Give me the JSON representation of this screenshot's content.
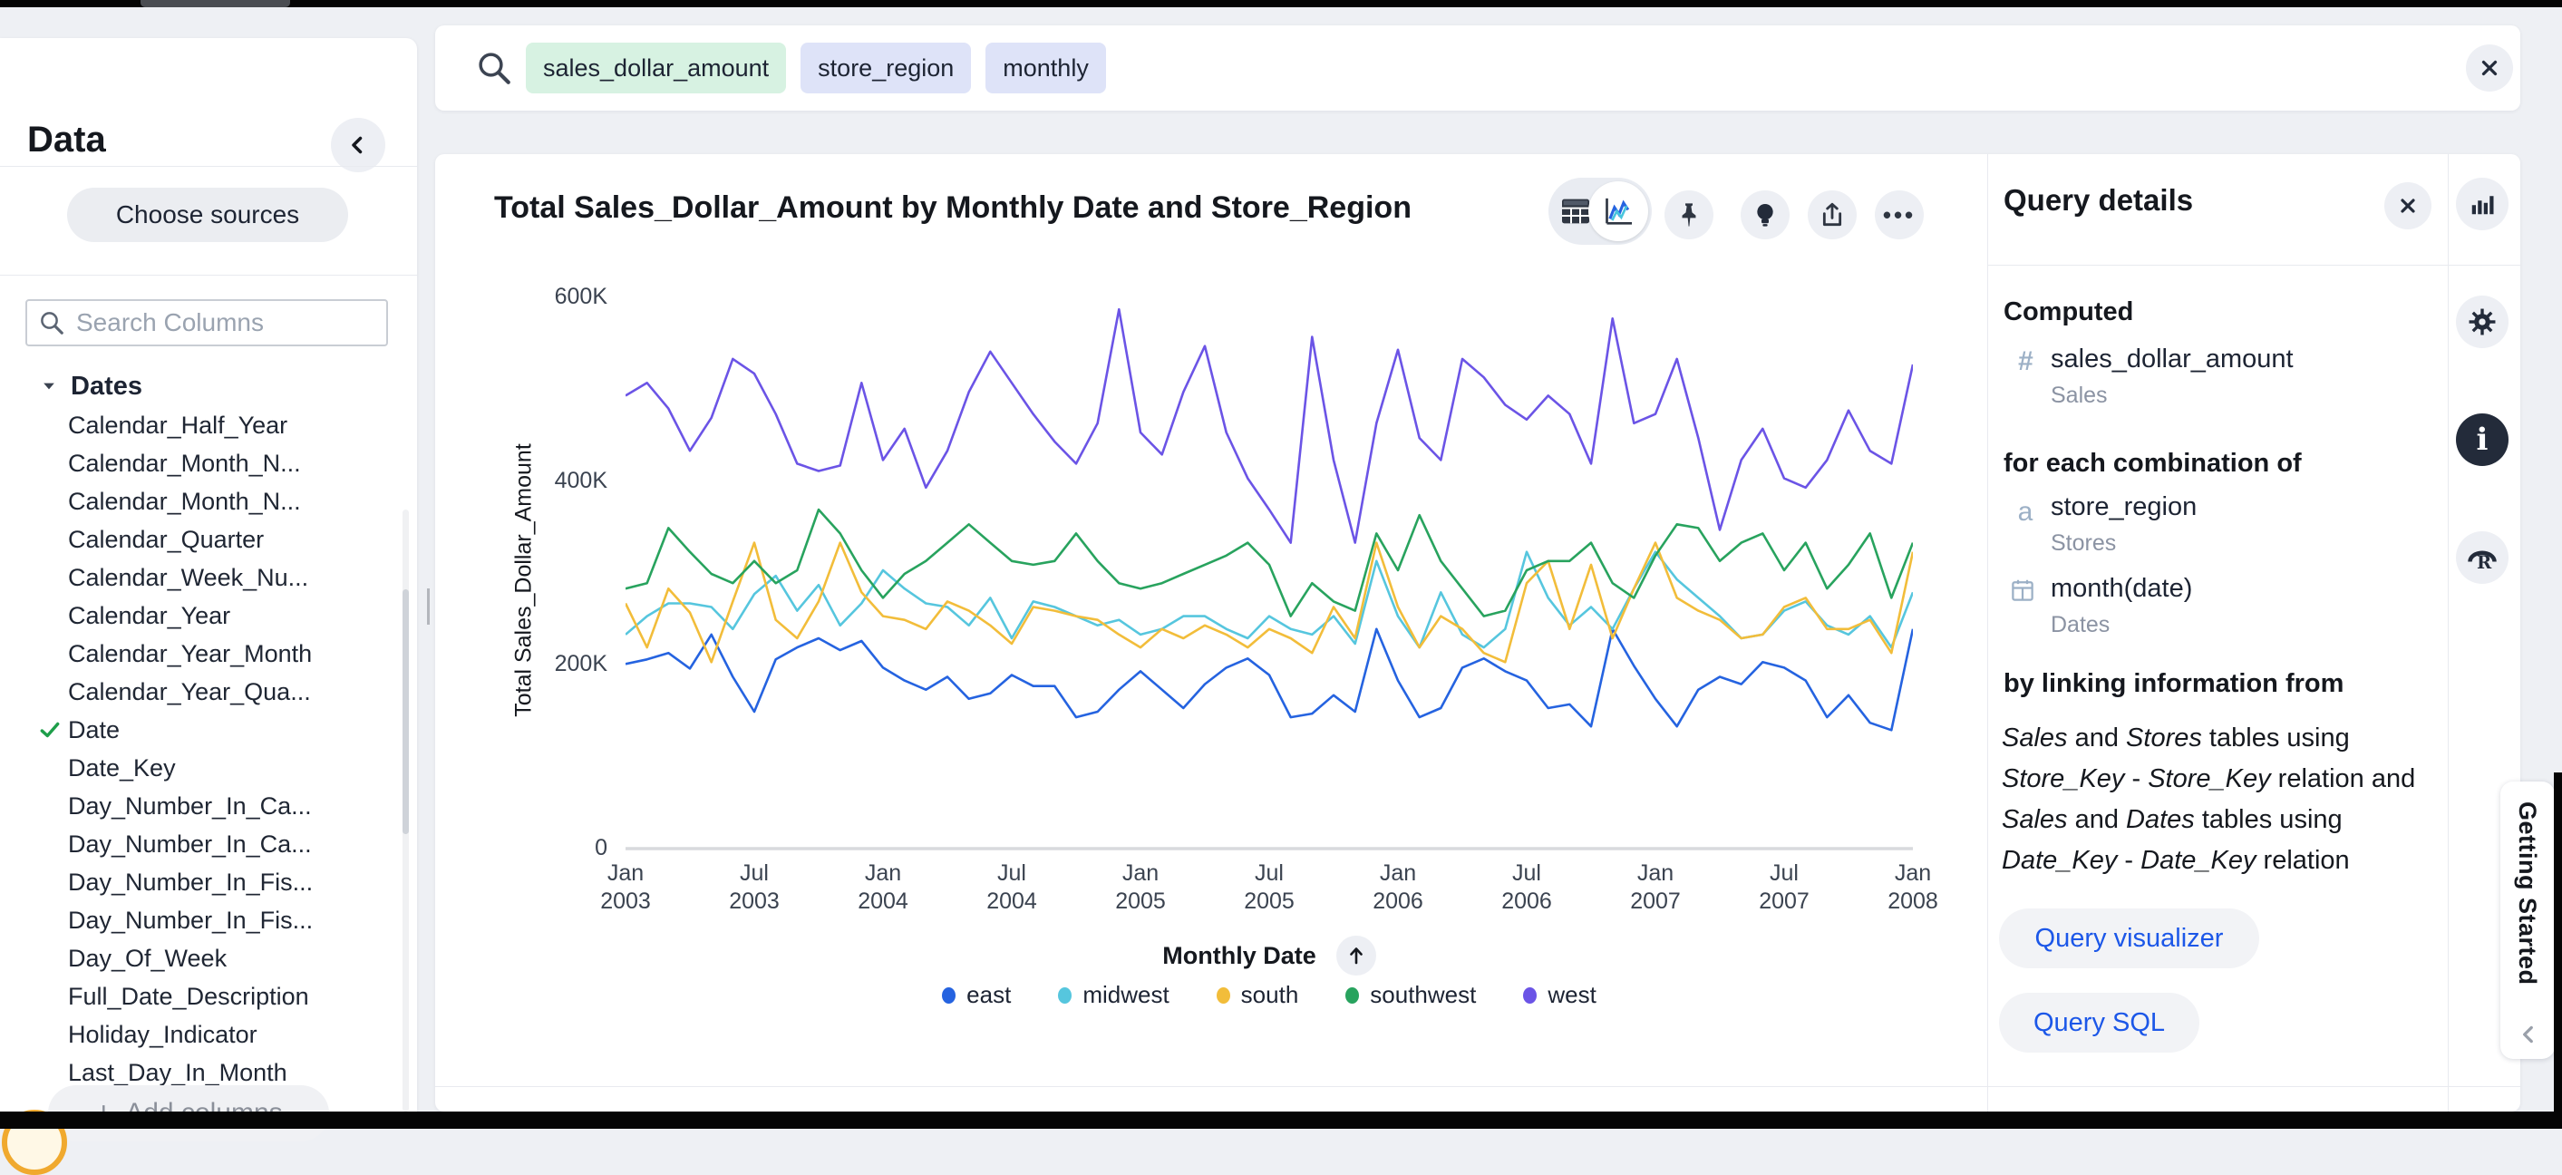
{
  "browser": {
    "note": "partial browser chrome strip"
  },
  "sidebar": {
    "title": "Data",
    "choose_sources_label": "Choose sources",
    "search_placeholder": "Search Columns",
    "group_label": "Dates",
    "columns": [
      {
        "label": "Calendar_Half_Year",
        "checked": false
      },
      {
        "label": "Calendar_Month_N...",
        "checked": false
      },
      {
        "label": "Calendar_Month_N...",
        "checked": false
      },
      {
        "label": "Calendar_Quarter",
        "checked": false
      },
      {
        "label": "Calendar_Week_Nu...",
        "checked": false
      },
      {
        "label": "Calendar_Year",
        "checked": false
      },
      {
        "label": "Calendar_Year_Month",
        "checked": false
      },
      {
        "label": "Calendar_Year_Qua...",
        "checked": false
      },
      {
        "label": "Date",
        "checked": true
      },
      {
        "label": "Date_Key",
        "checked": false
      },
      {
        "label": "Day_Number_In_Ca...",
        "checked": false
      },
      {
        "label": "Day_Number_In_Ca...",
        "checked": false
      },
      {
        "label": "Day_Number_In_Fis...",
        "checked": false
      },
      {
        "label": "Day_Number_In_Fis...",
        "checked": false
      },
      {
        "label": "Day_Of_Week",
        "checked": false
      },
      {
        "label": "Full_Date_Description",
        "checked": false
      },
      {
        "label": "Holiday_Indicator",
        "checked": false
      },
      {
        "label": "Last_Day_In_Month",
        "checked": false
      }
    ],
    "add_columns_label": "Add columns"
  },
  "search_bar": {
    "tokens": [
      {
        "text": "sales_dollar_amount",
        "type": "measure"
      },
      {
        "text": "store_region",
        "type": "attribute"
      },
      {
        "text": "monthly",
        "type": "keyword"
      }
    ]
  },
  "chart": {
    "title": "Total Sales_Dollar_Amount by Monthly Date and Store_Region",
    "x_axis_label": "Monthly Date",
    "y_axis_label": "Total Sales_Dollar_Amount"
  },
  "chart_data": {
    "type": "line",
    "title": "Total Sales_Dollar_Amount by Monthly Date and Store_Region",
    "xlabel": "Monthly Date",
    "ylabel": "Total Sales_Dollar_Amount",
    "units": "USD, values in thousands (K), monthly from Jan 2003 to Jan 2008, estimated from plot",
    "x_tick_labels": [
      [
        "Jan",
        "2003"
      ],
      [
        "Jul",
        "2003"
      ],
      [
        "Jan",
        "2004"
      ],
      [
        "Jul",
        "2004"
      ],
      [
        "Jan",
        "2005"
      ],
      [
        "Jul",
        "2005"
      ],
      [
        "Jan",
        "2006"
      ],
      [
        "Jul",
        "2006"
      ],
      [
        "Jan",
        "2007"
      ],
      [
        "Jul",
        "2007"
      ],
      [
        "Jan",
        "2008"
      ]
    ],
    "y_tick_labels": [
      "0",
      "200K",
      "400K",
      "600K"
    ],
    "ylim_k": [
      0,
      600
    ],
    "n_points": 61,
    "grid": false,
    "legend_position": "bottom",
    "series": [
      {
        "name": "east",
        "color": "#2563e0",
        "values_k": [
          200,
          205,
          212,
          195,
          232,
          186,
          148,
          205,
          218,
          228,
          215,
          225,
          196,
          182,
          172,
          186,
          162,
          168,
          188,
          176,
          176,
          142,
          148,
          172,
          192,
          172,
          152,
          178,
          196,
          206,
          188,
          142,
          146,
          166,
          148,
          238,
          182,
          142,
          152,
          196,
          206,
          192,
          182,
          152,
          156,
          132,
          238,
          198,
          162,
          132,
          172,
          186,
          178,
          202,
          196,
          182,
          142,
          166,
          136,
          128,
          238
        ]
      },
      {
        "name": "midwest",
        "color": "#56c6de",
        "values_k": [
          232,
          252,
          266,
          266,
          262,
          238,
          276,
          296,
          258,
          286,
          242,
          266,
          302,
          282,
          266,
          262,
          242,
          272,
          228,
          268,
          262,
          252,
          242,
          248,
          232,
          238,
          252,
          252,
          238,
          228,
          252,
          238,
          232,
          252,
          222,
          312,
          252,
          218,
          278,
          232,
          218,
          238,
          322,
          272,
          242,
          262,
          238,
          282,
          322,
          292,
          272,
          252,
          228,
          232,
          258,
          268,
          242,
          232,
          252,
          218,
          278
        ]
      },
      {
        "name": "south",
        "color": "#f2bd3a",
        "values_k": [
          266,
          218,
          282,
          256,
          202,
          268,
          332,
          248,
          228,
          268,
          332,
          278,
          252,
          248,
          238,
          268,
          258,
          242,
          222,
          262,
          258,
          252,
          248,
          232,
          218,
          238,
          228,
          242,
          232,
          218,
          238,
          228,
          212,
          262,
          228,
          332,
          262,
          218,
          252,
          238,
          212,
          202,
          288,
          312,
          238,
          308,
          228,
          282,
          332,
          272,
          258,
          248,
          228,
          232,
          262,
          272,
          238,
          238,
          248,
          212,
          322
        ]
      },
      {
        "name": "southwest",
        "color": "#28a35e",
        "values_k": [
          282,
          288,
          348,
          322,
          298,
          288,
          312,
          288,
          302,
          368,
          342,
          302,
          272,
          298,
          312,
          332,
          352,
          332,
          312,
          308,
          312,
          342,
          312,
          288,
          282,
          288,
          298,
          308,
          318,
          332,
          308,
          252,
          288,
          268,
          258,
          342,
          302,
          362,
          312,
          282,
          252,
          258,
          302,
          312,
          312,
          332,
          288,
          272,
          318,
          352,
          348,
          312,
          332,
          342,
          302,
          332,
          282,
          308,
          342,
          272,
          332
        ]
      },
      {
        "name": "west",
        "color": "#6b54e6",
        "values_k": [
          492,
          506,
          478,
          432,
          468,
          532,
          516,
          472,
          418,
          410,
          416,
          506,
          422,
          456,
          392,
          432,
          496,
          540,
          506,
          472,
          442,
          418,
          462,
          586,
          452,
          428,
          496,
          546,
          452,
          402,
          368,
          332,
          556,
          422,
          332,
          462,
          542,
          446,
          422,
          532,
          512,
          482,
          466,
          492,
          472,
          418,
          576,
          462,
          472,
          532,
          446,
          346,
          422,
          456,
          402,
          392,
          422,
          476,
          432,
          418,
          526
        ]
      }
    ]
  },
  "query_details": {
    "title": "Query details",
    "computed_label": "Computed",
    "measure": {
      "name": "sales_dollar_amount",
      "source": "Sales"
    },
    "combination_label": "for each combination of",
    "attributes": [
      {
        "name": "store_region",
        "source": "Stores",
        "icon": "text-attribute"
      },
      {
        "name": "month(date)",
        "source": "Dates",
        "icon": "date-attribute"
      }
    ],
    "linking_label": "by linking information from",
    "linking_segments": [
      {
        "t": "Sales",
        "i": true
      },
      {
        "t": " and ",
        "i": false
      },
      {
        "t": "Stores",
        "i": true
      },
      {
        "t": " tables using ",
        "i": false
      },
      {
        "t": "Store_Key",
        "i": true
      },
      {
        "t": " - ",
        "i": false
      },
      {
        "t": "Store_Key",
        "i": true
      },
      {
        "t": " relation and ",
        "i": false
      },
      {
        "t": "Sales",
        "i": true
      },
      {
        "t": " and ",
        "i": false
      },
      {
        "t": "Dates",
        "i": true
      },
      {
        "t": " tables using ",
        "i": false
      },
      {
        "t": "Date_Key",
        "i": true
      },
      {
        "t": " - ",
        "i": false
      },
      {
        "t": "Date_Key",
        "i": true
      },
      {
        "t": " relation",
        "i": false
      }
    ],
    "buttons": [
      {
        "label": "Query visualizer"
      },
      {
        "label": "Query SQL"
      }
    ]
  },
  "right_rail": {
    "icons": [
      "bar-chart",
      "gear",
      "info",
      "r-logo"
    ],
    "active": "info"
  },
  "getting_started": {
    "label": "Getting Started"
  },
  "colors": {
    "accent_blue": "#1c57e8",
    "token_measure_bg": "#d7f2e2",
    "token_attribute_bg": "#dee3f8",
    "check_green": "#1e9e4a",
    "axis_text": "#3b4350",
    "dark_icon": "#232b3a"
  }
}
